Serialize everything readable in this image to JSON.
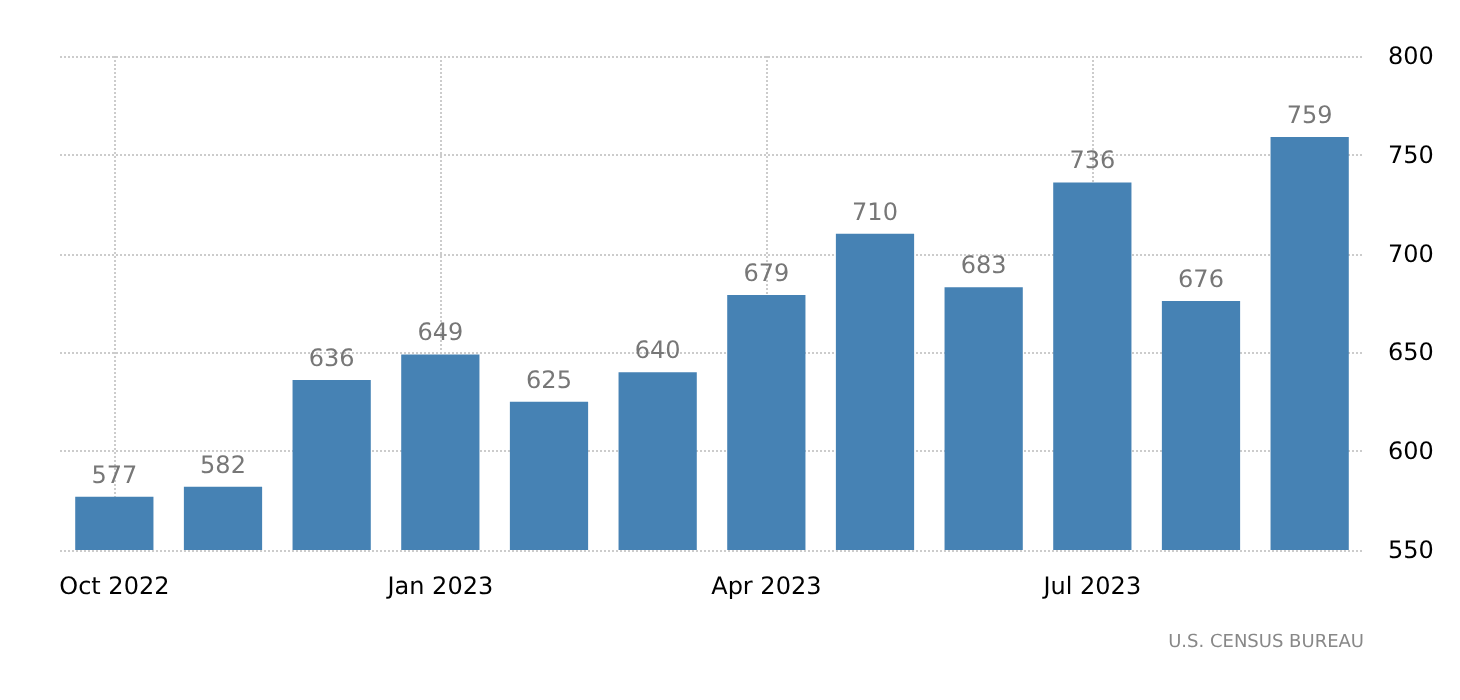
{
  "chart_data": {
    "type": "bar",
    "categories": [
      "Oct 2022",
      null,
      null,
      "Jan 2023",
      null,
      null,
      "Apr 2023",
      null,
      null,
      "Jul 2023",
      null,
      null
    ],
    "values": [
      577,
      582,
      636,
      649,
      625,
      640,
      679,
      710,
      683,
      736,
      676,
      759
    ],
    "color": "#4682b4",
    "ylim": [
      550,
      800
    ],
    "yticks": [
      550,
      600,
      650,
      700,
      750,
      800
    ],
    "grid": true,
    "data_labels": true,
    "annotations": [
      "U.S. CENSUS BUREAU"
    ]
  }
}
